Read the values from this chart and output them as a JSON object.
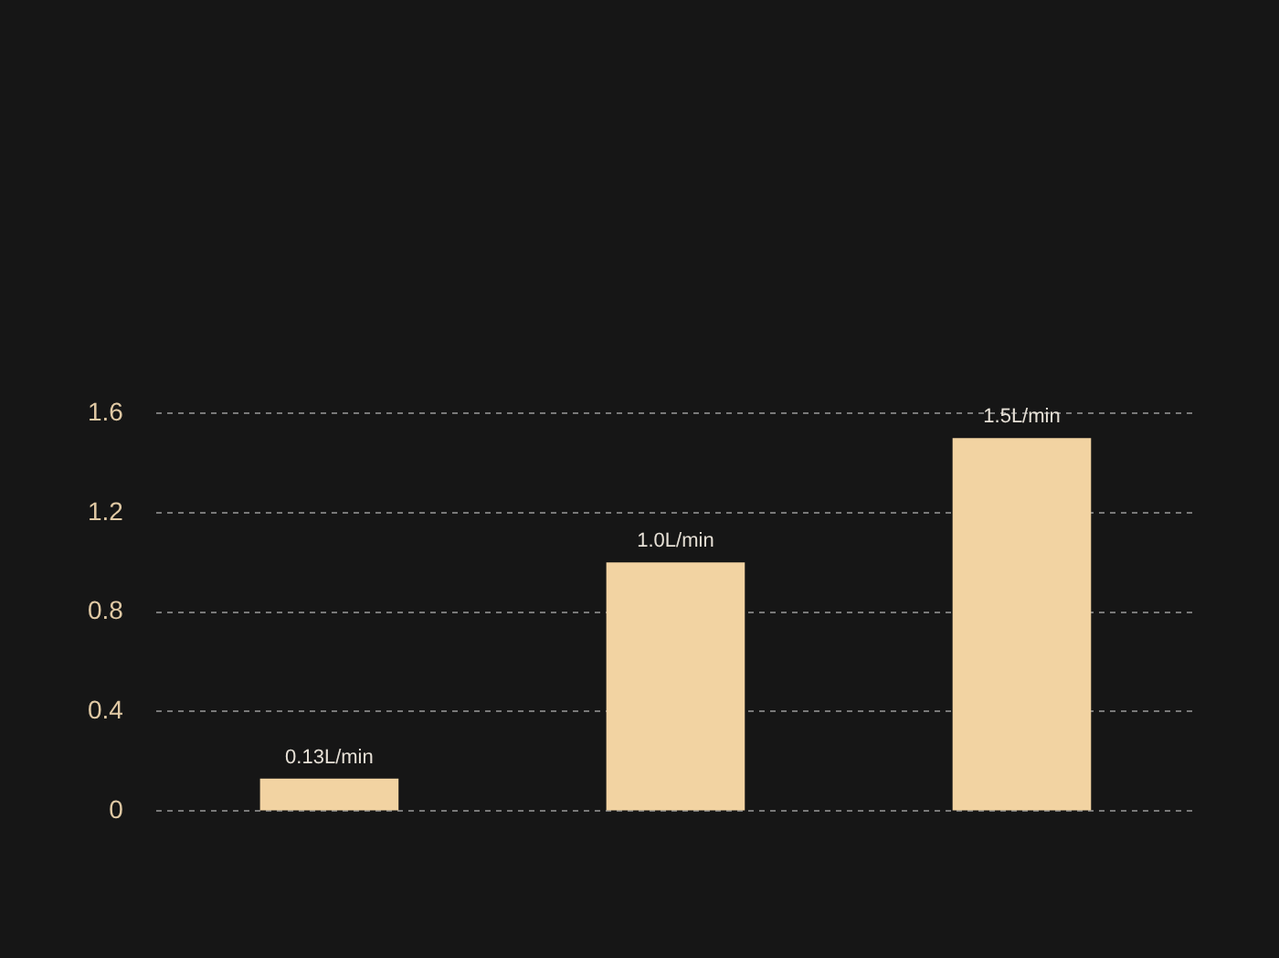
{
  "chart_data": {
    "type": "bar",
    "categories": [
      null,
      null,
      null
    ],
    "values": [
      0.13,
      1.0,
      1.5
    ],
    "value_labels": [
      "0.13L/min",
      "1.0L/min",
      "1.5L/min"
    ],
    "color": "#f2d3a2",
    "ylim": [
      0,
      1.6
    ],
    "yticks": [
      0,
      0.4,
      0.8,
      1.2,
      1.6
    ],
    "grid": "y"
  }
}
